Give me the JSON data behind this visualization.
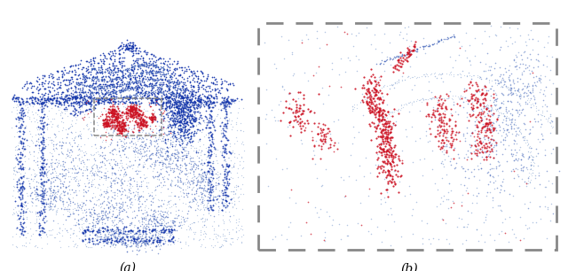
{
  "background_color": "#ffffff",
  "label_a": "(a)",
  "label_b": "(b)",
  "blue_light": "#7799cc",
  "blue_med": "#4466bb",
  "blue_dark": "#1133aa",
  "red_color": "#cc1122",
  "dash_color": "#888888",
  "seed": 7
}
